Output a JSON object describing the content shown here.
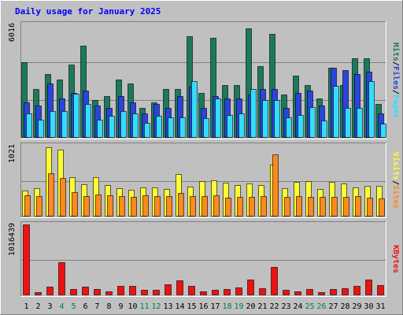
{
  "chart_data": {
    "type": "bar",
    "title": "Daily usage for January 2025",
    "categories": [
      "1",
      "2",
      "3",
      "4",
      "5",
      "6",
      "7",
      "8",
      "9",
      "10",
      "11",
      "12",
      "13",
      "14",
      "15",
      "16",
      "17",
      "18",
      "19",
      "20",
      "21",
      "22",
      "23",
      "24",
      "25",
      "26",
      "27",
      "28",
      "29",
      "30",
      "31"
    ],
    "weekend_days": [
      "4",
      "5",
      "11",
      "12",
      "18",
      "19",
      "25",
      "26"
    ],
    "panels": [
      {
        "id": "top",
        "ymax_label": "6016",
        "ymax": 6016,
        "legend": [
          "Pages",
          "/",
          "Files",
          "/",
          "Hits"
        ],
        "series": [
          {
            "name": "Hits",
            "color": "#1a7a5a",
            "values": [
              4000,
              2600,
              3400,
              3100,
              3900,
              4900,
              2000,
              2200,
              3100,
              2900,
              1600,
              1900,
              2600,
              2600,
              5400,
              2400,
              5300,
              2800,
              2800,
              5800,
              3800,
              5500,
              2300,
              3300,
              2800,
              2100,
              3700,
              2800,
              4200,
              4200,
              1800
            ]
          },
          {
            "name": "Files",
            "color": "#2a44dd",
            "values": [
              1900,
              1700,
              2900,
              2100,
              2400,
              2500,
              1700,
              1600,
              2200,
              1900,
              1300,
              1800,
              1600,
              2200,
              2700,
              1600,
              2200,
              2100,
              2100,
              2300,
              2600,
              2600,
              1600,
              2400,
              2500,
              1700,
              3700,
              3600,
              3400,
              3500,
              1300
            ]
          },
          {
            "name": "Pages",
            "color": "#33ddff",
            "values": [
              1300,
              950,
              1400,
              1400,
              2350,
              1800,
              950,
              1150,
              1400,
              1300,
              800,
              1150,
              1100,
              1100,
              3000,
              1050,
              2100,
              1200,
              1300,
              2600,
              2000,
              2000,
              1100,
              1200,
              1650,
              900,
              2750,
              1600,
              1600,
              3000,
              750
            ]
          }
        ]
      },
      {
        "id": "mid",
        "ymax_label": "1021",
        "ymax": 1021,
        "legend": [
          "Sites",
          "/",
          "Visits"
        ],
        "series": [
          {
            "name": "Visits",
            "color": "#ffff33",
            "values": [
              380,
              410,
              1000,
              960,
              570,
              460,
              570,
              450,
              410,
              390,
              420,
              420,
              400,
              610,
              430,
              510,
              520,
              490,
              450,
              480,
              450,
              750,
              410,
              500,
              510,
              400,
              500,
              480,
              420,
              440,
              440
            ]
          },
          {
            "name": "Sites",
            "color": "#ff8a1e",
            "values": [
              310,
              300,
              620,
              560,
              350,
              300,
              320,
              310,
              300,
              280,
              310,
              300,
              290,
              340,
              290,
              290,
              310,
              270,
              280,
              280,
              300,
              900,
              280,
              300,
              280,
              280,
              280,
              280,
              300,
              270,
              260
            ]
          }
        ]
      },
      {
        "id": "bottom",
        "ymax_label": "1016439",
        "ymax": 1016439,
        "legend": [
          "KBytes"
        ],
        "series": [
          {
            "name": "KBytes",
            "color": "#ee1111",
            "values": [
              1016439,
              45000,
              120000,
              470000,
              85000,
              120000,
              90000,
              60000,
              130000,
              130000,
              80000,
              75000,
              160000,
              210000,
              130000,
              55000,
              80000,
              90000,
              110000,
              230000,
              100000,
              410000,
              80000,
              60000,
              95000,
              45000,
              90000,
              100000,
              130000,
              230000,
              150000
            ]
          }
        ]
      }
    ],
    "colors": {
      "page_bg": "#c0c0c0",
      "plot_bg": "#c0c0c0",
      "title": "#0000ff",
      "weekday_label": "#000000",
      "weekend_label": "#00804a",
      "separator_label": "#000000"
    }
  }
}
